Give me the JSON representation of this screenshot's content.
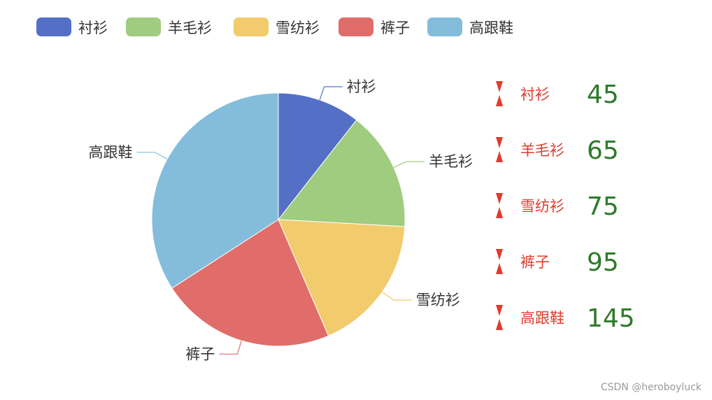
{
  "chart_data": {
    "type": "pie",
    "title": "",
    "categories": [
      "衬衫",
      "羊毛衫",
      "雪纺衫",
      "裤子",
      "高跟鞋"
    ],
    "values": [
      45,
      65,
      75,
      95,
      145
    ],
    "colors": [
      "#5470c6",
      "#9fcc7f",
      "#f2cb6c",
      "#e06d6a",
      "#84bddb"
    ],
    "legend": {
      "position": "top-left",
      "entries": [
        "衬衫",
        "羊毛衫",
        "雪纺衫",
        "裤子",
        "高跟鞋"
      ]
    },
    "side_list": {
      "name_color": "#e03b2c",
      "value_color": "#2f7a2b",
      "marker_color": "#e03b2c",
      "items": [
        {
          "name": "衬衫",
          "value": "45"
        },
        {
          "name": "羊毛衫",
          "value": "65"
        },
        {
          "name": "雪纺衫",
          "value": "75"
        },
        {
          "name": "裤子",
          "value": "95"
        },
        {
          "name": "高跟鞋",
          "value": "145"
        }
      ]
    }
  },
  "watermark": "CSDN @heroboyluck"
}
